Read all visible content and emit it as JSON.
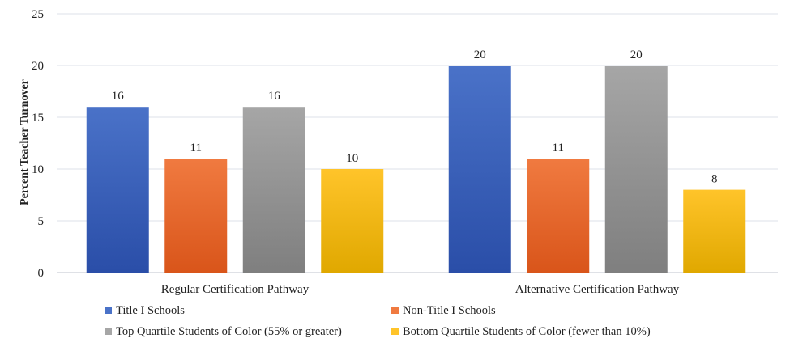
{
  "chart_data": {
    "type": "bar",
    "title": "",
    "xlabel": "",
    "ylabel": "Percent Teacher Turnover",
    "ylim": [
      0,
      25
    ],
    "yticks": [
      0,
      5,
      10,
      15,
      20,
      25
    ],
    "grid": true,
    "legend_position": "bottom",
    "categories": [
      "Regular Certification Pathway",
      "Alternative Certification Pathway"
    ],
    "series": [
      {
        "name": "Title I Schools",
        "values": [
          16,
          20
        ],
        "color_top": "#4a72c8",
        "color_bottom": "#2a4ea8"
      },
      {
        "name": "Non-Title I Schools",
        "values": [
          11,
          11
        ],
        "color_top": "#f07a40",
        "color_bottom": "#d9551a"
      },
      {
        "name": "Top Quartile Students of Color (55% or greater)",
        "values": [
          16,
          20
        ],
        "color_top": "#a6a6a6",
        "color_bottom": "#7f7f7f"
      },
      {
        "name": "Bottom Quartile Students of Color (fewer than 10%)",
        "values": [
          10,
          8
        ],
        "color_top": "#ffc42a",
        "color_bottom": "#e0a800"
      }
    ],
    "data_labels": [
      [
        16,
        20
      ],
      [
        11,
        11
      ],
      [
        16,
        20
      ],
      [
        10,
        8
      ]
    ]
  }
}
